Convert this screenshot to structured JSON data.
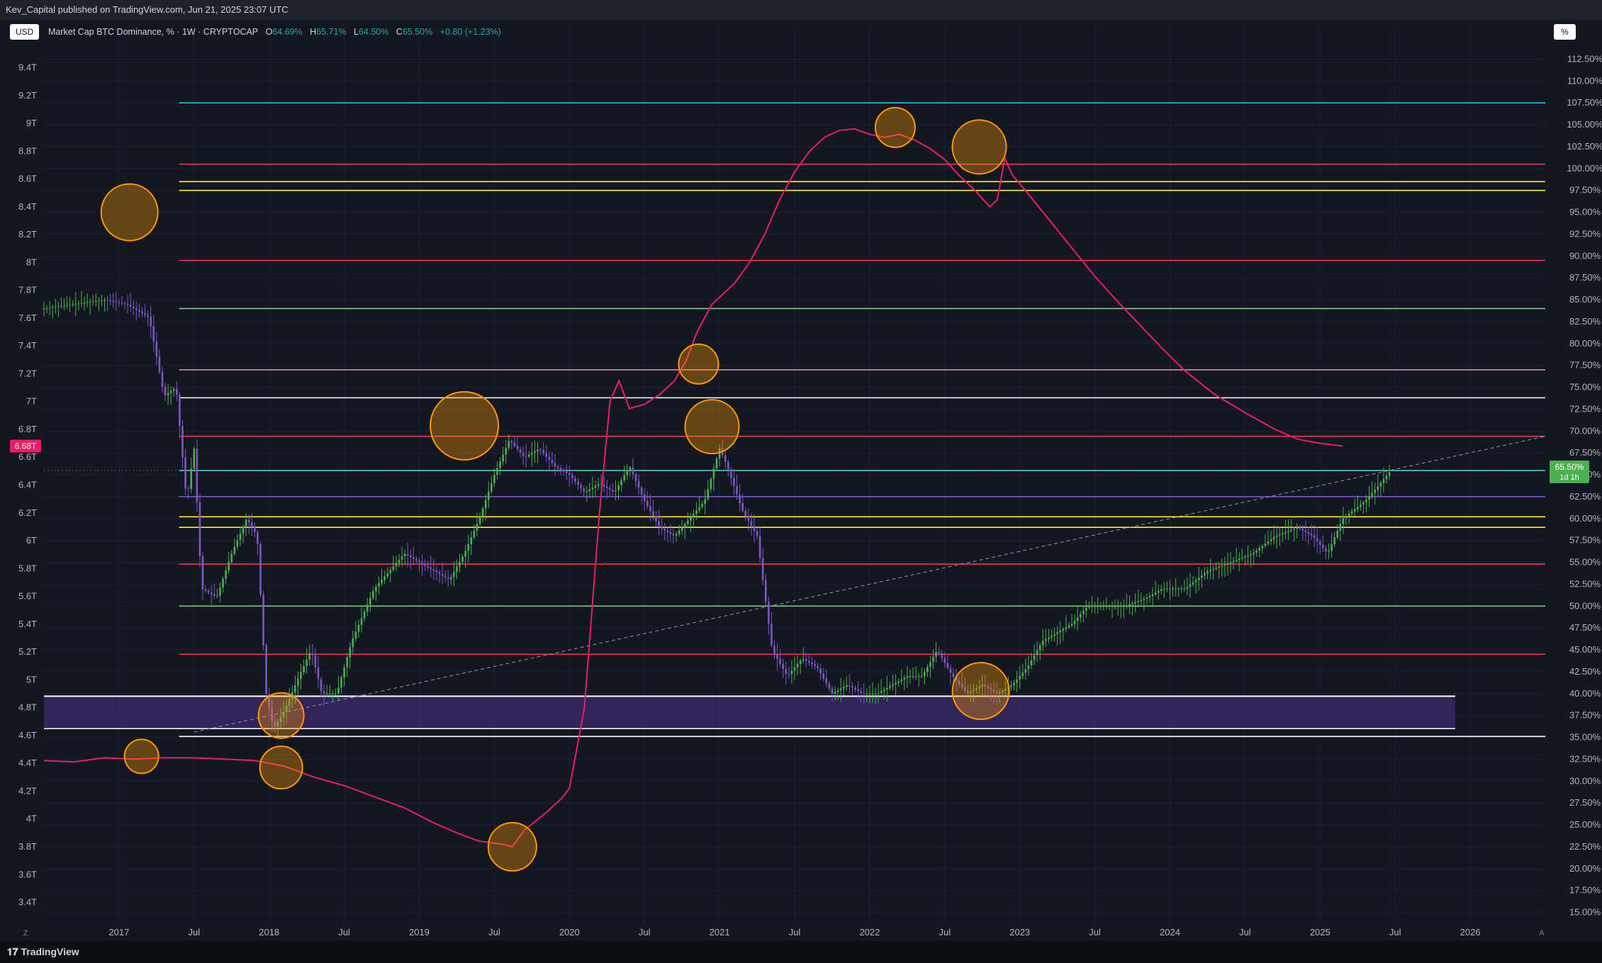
{
  "header": {
    "published": "Kev_Capital published on TradingView.com, Jun 21, 2025 23:07 UTC"
  },
  "toolbar": {
    "currency": "USD",
    "scale_mode": "%"
  },
  "legend": {
    "symbol": "Market Cap BTC Dominance, % · 1W · CRYPTOCAP",
    "o_label": "O",
    "o_value": "64.69%",
    "h_label": "H",
    "h_value": "65.71%",
    "l_label": "L",
    "l_value": "64.50%",
    "c_label": "C",
    "c_value": "65.50%",
    "change": "+0.80 (+1.23%)"
  },
  "colors": {
    "background": "#131722",
    "candle_up": "#4caf50",
    "candle_down": "#7e57c2",
    "market_cap_line": "#e91e63",
    "marker": "#ff9800",
    "zone": "#4a2f8a"
  },
  "footer": {
    "brand": "TradingView",
    "left_icon": "Z",
    "right_icon": "A"
  },
  "chart_data": {
    "type": "line",
    "title": "Market Cap BTC Dominance, % · 1W · CRYPTOCAP",
    "x_ticks": [
      "2017",
      "Jul",
      "2018",
      "Jul",
      "2019",
      "Jul",
      "2020",
      "Jul",
      "2021",
      "Jul",
      "2022",
      "Jul",
      "2023",
      "Jul",
      "2024",
      "Jul",
      "2025",
      "Jul",
      "2026"
    ],
    "x_tick_dates": [
      2017.0,
      2017.5,
      2018.0,
      2018.5,
      2019.0,
      2019.5,
      2020.0,
      2020.5,
      2021.0,
      2021.5,
      2022.0,
      2022.5,
      2023.0,
      2023.5,
      2024.0,
      2024.5,
      2025.0,
      2025.5,
      2026.0
    ],
    "x_range": [
      2016.5,
      2026.5
    ],
    "right_axis": {
      "label": "%",
      "range": [
        13.75,
        113.75
      ],
      "ticks": [
        "112.50%",
        "110.00%",
        "107.50%",
        "105.00%",
        "102.50%",
        "100.00%",
        "97.50%",
        "95.00%",
        "92.50%",
        "90.00%",
        "87.50%",
        "85.00%",
        "82.50%",
        "80.00%",
        "77.50%",
        "75.00%",
        "72.50%",
        "70.00%",
        "67.50%",
        "65.00%",
        "62.50%",
        "60.00%",
        "57.50%",
        "55.00%",
        "52.50%",
        "50.00%",
        "47.50%",
        "45.00%",
        "42.50%",
        "40.00%",
        "37.50%",
        "35.00%",
        "32.50%",
        "30.00%",
        "27.50%",
        "25.00%",
        "22.50%",
        "20.00%",
        "17.50%",
        "15.00%"
      ],
      "last_label": "65.50%",
      "last_value": 65.5,
      "countdown": "1d 1h"
    },
    "left_axis": {
      "label": "USD",
      "range": [
        3.25,
        9.54
      ],
      "ticks": [
        "9.4T",
        "9.2T",
        "9T",
        "8.8T",
        "8.6T",
        "8.4T",
        "8.2T",
        "8T",
        "7.8T",
        "7.6T",
        "7.4T",
        "7.2T",
        "7T",
        "6.8T",
        "6.6T",
        "6.4T",
        "6.2T",
        "6T",
        "5.8T",
        "5.6T",
        "5.4T",
        "5.2T",
        "5T",
        "4.8T",
        "4.6T",
        "4.4T",
        "4.2T",
        "4T",
        "3.8T",
        "3.6T",
        "3.4T"
      ],
      "last_label": "6.68T",
      "last_value": 6.68
    },
    "series": [
      {
        "values": [
          [
            2016.5,
            84
          ],
          [
            2016.9,
            85
          ],
          [
            2017.05,
            84.5
          ],
          [
            2017.2,
            83
          ],
          [
            2017.3,
            74
          ],
          [
            2017.38,
            75
          ],
          [
            2017.45,
            62
          ],
          [
            2017.5,
            68
          ],
          [
            2017.55,
            52
          ],
          [
            2017.65,
            51
          ],
          [
            2017.75,
            56
          ],
          [
            2017.85,
            60
          ],
          [
            2017.92,
            58
          ],
          [
            2017.98,
            40
          ],
          [
            2018.03,
            36
          ],
          [
            2018.1,
            38
          ],
          [
            2018.2,
            42
          ],
          [
            2018.28,
            45
          ],
          [
            2018.35,
            40
          ],
          [
            2018.45,
            40
          ],
          [
            2018.55,
            46
          ],
          [
            2018.7,
            52
          ],
          [
            2018.8,
            54
          ],
          [
            2018.9,
            56
          ],
          [
            2019.0,
            55
          ],
          [
            2019.1,
            54
          ],
          [
            2019.2,
            53
          ],
          [
            2019.3,
            56
          ],
          [
            2019.4,
            60
          ],
          [
            2019.5,
            65
          ],
          [
            2019.6,
            69
          ],
          [
            2019.7,
            67
          ],
          [
            2019.8,
            68
          ],
          [
            2019.9,
            66
          ],
          [
            2020.0,
            65
          ],
          [
            2020.1,
            63
          ],
          [
            2020.2,
            64
          ],
          [
            2020.3,
            63
          ],
          [
            2020.4,
            66
          ],
          [
            2020.5,
            62
          ],
          [
            2020.6,
            59
          ],
          [
            2020.7,
            58
          ],
          [
            2020.8,
            60
          ],
          [
            2020.9,
            62
          ],
          [
            2021.0,
            68
          ],
          [
            2021.05,
            66
          ],
          [
            2021.15,
            61
          ],
          [
            2021.25,
            58
          ],
          [
            2021.35,
            45
          ],
          [
            2021.45,
            42
          ],
          [
            2021.55,
            44
          ],
          [
            2021.65,
            43
          ],
          [
            2021.75,
            40
          ],
          [
            2021.85,
            41
          ],
          [
            2021.95,
            40
          ],
          [
            2022.05,
            40
          ],
          [
            2022.15,
            41
          ],
          [
            2022.25,
            42
          ],
          [
            2022.35,
            42
          ],
          [
            2022.45,
            45
          ],
          [
            2022.55,
            42
          ],
          [
            2022.65,
            40
          ],
          [
            2022.75,
            41
          ],
          [
            2022.85,
            40
          ],
          [
            2022.95,
            41
          ],
          [
            2023.05,
            43
          ],
          [
            2023.15,
            46
          ],
          [
            2023.25,
            47
          ],
          [
            2023.35,
            48
          ],
          [
            2023.45,
            50
          ],
          [
            2023.55,
            50
          ],
          [
            2023.7,
            50
          ],
          [
            2023.85,
            51
          ],
          [
            2023.95,
            52
          ],
          [
            2024.1,
            52
          ],
          [
            2024.25,
            54
          ],
          [
            2024.4,
            55
          ],
          [
            2024.55,
            56
          ],
          [
            2024.7,
            58
          ],
          [
            2024.85,
            59
          ],
          [
            2024.95,
            58
          ],
          [
            2025.05,
            56
          ],
          [
            2025.15,
            60
          ],
          [
            2025.3,
            62
          ],
          [
            2025.4,
            64
          ],
          [
            2025.47,
            65.5
          ]
        ]
      },
      {
        "values": [
          [
            2016.5,
            4.42
          ],
          [
            2016.7,
            4.41
          ],
          [
            2016.9,
            4.44
          ],
          [
            2017.1,
            4.43
          ],
          [
            2017.3,
            4.44
          ],
          [
            2017.5,
            4.44
          ],
          [
            2017.7,
            4.43
          ],
          [
            2017.9,
            4.42
          ],
          [
            2018.1,
            4.38
          ],
          [
            2018.3,
            4.3
          ],
          [
            2018.5,
            4.24
          ],
          [
            2018.7,
            4.16
          ],
          [
            2018.9,
            4.08
          ],
          [
            2019.1,
            3.97
          ],
          [
            2019.25,
            3.9
          ],
          [
            2019.4,
            3.84
          ],
          [
            2019.55,
            3.82
          ],
          [
            2019.62,
            3.8
          ],
          [
            2019.7,
            3.92
          ],
          [
            2019.85,
            4.05
          ],
          [
            2019.95,
            4.15
          ],
          [
            2020.0,
            4.22
          ],
          [
            2020.1,
            4.8
          ],
          [
            2020.15,
            5.5
          ],
          [
            2020.2,
            6.2
          ],
          [
            2020.27,
            7.0
          ],
          [
            2020.33,
            7.15
          ],
          [
            2020.4,
            6.95
          ],
          [
            2020.5,
            6.98
          ],
          [
            2020.6,
            7.05
          ],
          [
            2020.7,
            7.15
          ],
          [
            2020.78,
            7.3
          ],
          [
            2020.85,
            7.5
          ],
          [
            2020.95,
            7.7
          ],
          [
            2021.1,
            7.85
          ],
          [
            2021.2,
            8.0
          ],
          [
            2021.3,
            8.2
          ],
          [
            2021.4,
            8.45
          ],
          [
            2021.5,
            8.65
          ],
          [
            2021.6,
            8.8
          ],
          [
            2021.7,
            8.9
          ],
          [
            2021.8,
            8.95
          ],
          [
            2021.9,
            8.96
          ],
          [
            2022.0,
            8.92
          ],
          [
            2022.1,
            8.9
          ],
          [
            2022.2,
            8.92
          ],
          [
            2022.3,
            8.88
          ],
          [
            2022.4,
            8.82
          ],
          [
            2022.5,
            8.74
          ],
          [
            2022.6,
            8.62
          ],
          [
            2022.7,
            8.52
          ],
          [
            2022.8,
            8.4
          ],
          [
            2022.85,
            8.45
          ],
          [
            2022.9,
            8.75
          ],
          [
            2022.95,
            8.63
          ],
          [
            2023.05,
            8.5
          ],
          [
            2023.2,
            8.3
          ],
          [
            2023.35,
            8.1
          ],
          [
            2023.5,
            7.9
          ],
          [
            2023.65,
            7.72
          ],
          [
            2023.8,
            7.55
          ],
          [
            2023.95,
            7.38
          ],
          [
            2024.1,
            7.22
          ],
          [
            2024.3,
            7.05
          ],
          [
            2024.5,
            6.92
          ],
          [
            2024.7,
            6.8
          ],
          [
            2024.85,
            6.73
          ],
          [
            2025.0,
            6.7
          ],
          [
            2025.15,
            6.68
          ]
        ]
      }
    ],
    "horizontal_levels": [
      {
        "value": 107.5,
        "color": "#26c6da"
      },
      {
        "value": 100.5,
        "color": "#f23645"
      },
      {
        "value": 98.5,
        "color": "#ffeb3b"
      },
      {
        "value": 97.5,
        "color": "#ffeb3b"
      },
      {
        "value": 89.5,
        "color": "#f23645"
      },
      {
        "value": 84.0,
        "color": "#81c784"
      },
      {
        "value": 77.0,
        "color": "#f48fb1"
      },
      {
        "value": 73.8,
        "color": "#ffffff"
      },
      {
        "value": 69.4,
        "color": "#f23645"
      },
      {
        "value": 65.5,
        "color": "#4dd0e1"
      },
      {
        "value": 62.5,
        "color": "#7e57c2"
      },
      {
        "value": 60.2,
        "color": "#ffeb3b"
      },
      {
        "value": 59.0,
        "color": "#ffeb3b"
      },
      {
        "value": 54.8,
        "color": "#f23645"
      },
      {
        "value": 50.0,
        "color": "#81c784"
      },
      {
        "value": 44.5,
        "color": "#f23645"
      },
      {
        "value": 35.1,
        "color": "#ffffff"
      }
    ],
    "zone": {
      "from": 36.0,
      "to": 39.7,
      "x_from": 2016.5,
      "x_to": 2025.9
    },
    "trend_line": [
      [
        2017.5,
        35.6
      ],
      [
        2026.5,
        69.4
      ]
    ],
    "markers": [
      {
        "x": 2017.07,
        "y": 95.0,
        "axis": "pct",
        "r": 1.0
      },
      {
        "x": 2018.08,
        "y": 37.5,
        "axis": "pct",
        "r": 0.8
      },
      {
        "x": 2017.15,
        "y": 4.45,
        "axis": "usd",
        "r": 0.6
      },
      {
        "x": 2018.08,
        "y": 4.37,
        "axis": "usd",
        "r": 0.75
      },
      {
        "x": 2019.3,
        "y": 70.6,
        "axis": "pct",
        "r": 1.2
      },
      {
        "x": 2019.62,
        "y": 3.8,
        "axis": "usd",
        "r": 0.85
      },
      {
        "x": 2020.95,
        "y": 70.5,
        "axis": "pct",
        "r": 0.95
      },
      {
        "x": 2020.86,
        "y": 7.27,
        "axis": "usd",
        "r": 0.7
      },
      {
        "x": 2022.17,
        "y": 8.97,
        "axis": "usd",
        "r": 0.7
      },
      {
        "x": 2022.73,
        "y": 8.83,
        "axis": "usd",
        "r": 0.95
      },
      {
        "x": 2022.74,
        "y": 40.3,
        "axis": "pct",
        "r": 1.0
      }
    ]
  }
}
